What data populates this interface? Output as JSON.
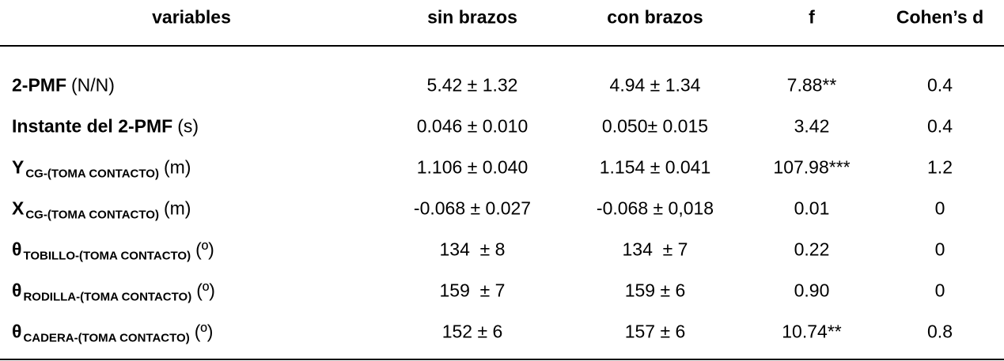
{
  "header": [
    "variables",
    "sin brazos",
    "con brazos",
    "f",
    "Cohen’s d"
  ],
  "rows": [
    {
      "label": {
        "main": "2-PMF",
        "unit": "(N/N)"
      },
      "cells": [
        "5.42 ± 1.32",
        "4.94 ± 1.34",
        "7.88**",
        "0.4"
      ]
    },
    {
      "label": {
        "main": "Instante del 2-PMF",
        "unit": "(s)"
      },
      "cells": [
        "0.046 ± 0.010",
        "0.050± 0.015",
        "3.42",
        "0.4"
      ]
    },
    {
      "label": {
        "main": "Y",
        "sub": "CG-(TOMA CONTACTO)",
        "unit": "(m)"
      },
      "cells": [
        "1.106 ± 0.040",
        "1.154 ± 0.041",
        "107.98***",
        "1.2"
      ]
    },
    {
      "label": {
        "main": "X",
        "sub": "CG-(TOMA CONTACTO)",
        "unit": "(m)"
      },
      "cells": [
        "-0.068 ± 0.027",
        "-0.068 ± 0,018",
        "0.01",
        "0"
      ]
    },
    {
      "label": {
        "main": "θ",
        "sub": "TOBILLO-(TOMA CONTACTO)",
        "unit": "(º)"
      },
      "cells": [
        "134  ± 8",
        "134  ± 7",
        "0.22",
        "0"
      ]
    },
    {
      "label": {
        "main": "θ",
        "sub": "RODILLA-(TOMA CONTACTO)",
        "unit": "(º)"
      },
      "cells": [
        "159  ± 7",
        "159 ± 6",
        "0.90",
        "0"
      ]
    },
    {
      "label": {
        "main": "θ",
        "sub": "CADERA-(TOMA CONTACTO)",
        "unit": "(º)"
      },
      "cells": [
        "152 ± 6",
        "157 ± 6",
        "10.74**",
        "0.8"
      ]
    }
  ]
}
